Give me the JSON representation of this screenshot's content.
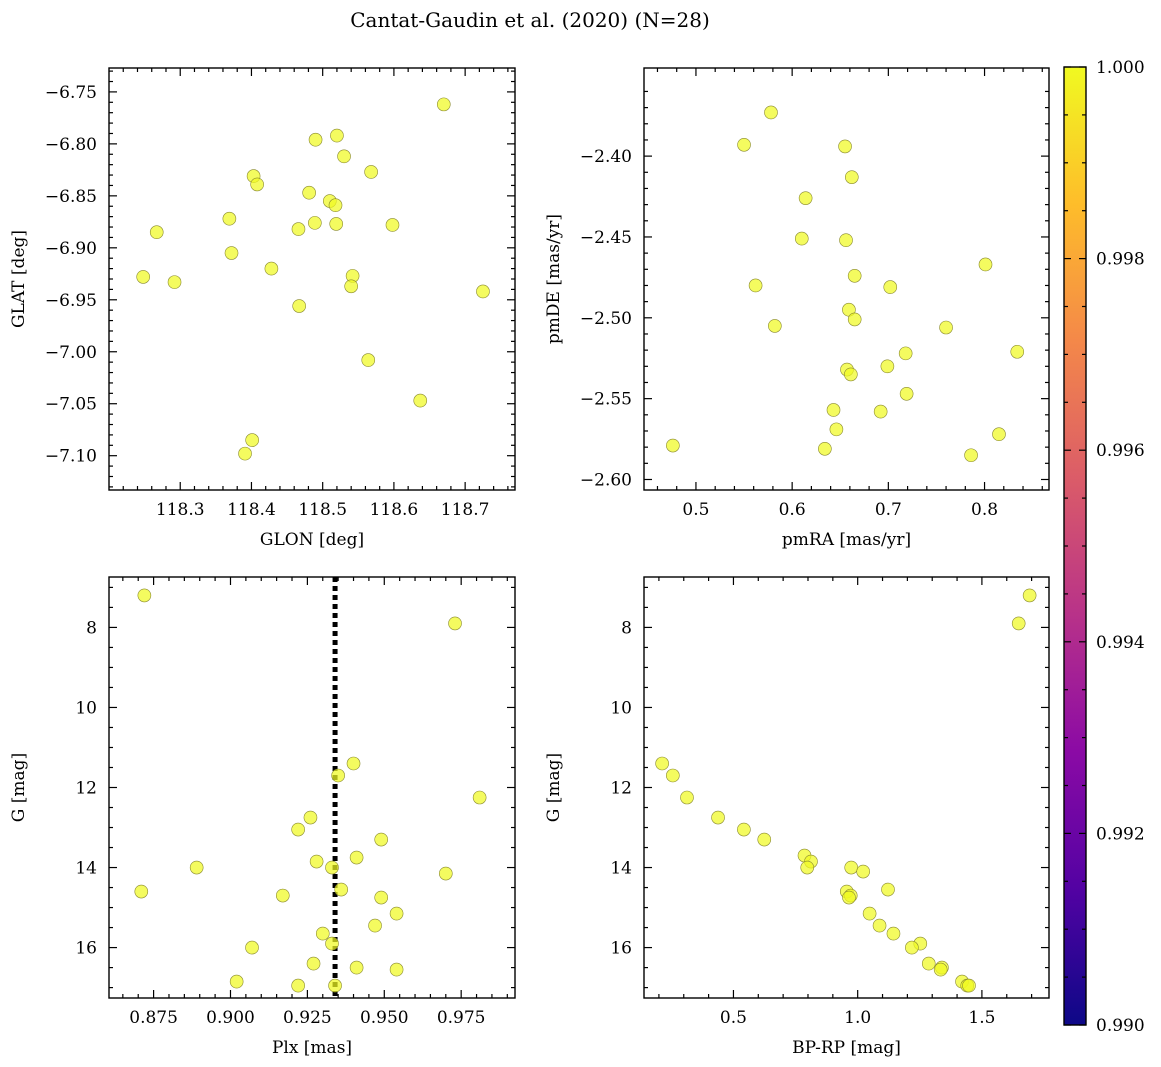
{
  "figure_title": "Cantat-Gaudin et al. (2020) (N=28)",
  "point_color": "#f0f921",
  "colorbar": {
    "colormap": "plasma",
    "colors": [
      "#0d0887",
      "#5302a3",
      "#8b0aa5",
      "#b83289",
      "#db5c68",
      "#f48849",
      "#febd2a",
      "#f0f921"
    ],
    "vmin": 0.99,
    "vmax": 1.0,
    "tick_labels": [
      "0.990",
      "0.992",
      "0.994",
      "0.996",
      "0.998",
      "1.000"
    ],
    "tick_values": [
      0.99,
      0.992,
      0.994,
      0.996,
      0.998,
      1.0
    ]
  },
  "chart_data": [
    {
      "type": "scatter",
      "xlabel": "GLON [deg]",
      "ylabel": "GLAT [deg]",
      "xlim": [
        118.2,
        118.77
      ],
      "ylim": [
        -7.133,
        -6.727
      ],
      "xticks": [
        118.3,
        118.4,
        118.5,
        118.6,
        118.7
      ],
      "xtick_labels": [
        "118.3",
        "118.4",
        "118.5",
        "118.6",
        "118.7"
      ],
      "yticks": [
        -6.75,
        -6.8,
        -6.85,
        -6.9,
        -6.95,
        -7.0,
        -7.05,
        -7.1
      ],
      "ytick_labels": [
        "−6.75",
        "−6.80",
        "−6.85",
        "−6.90",
        "−6.95",
        "−7.00",
        "−7.05",
        "−7.10"
      ],
      "x": [
        118.67,
        118.52,
        118.49,
        118.53,
        118.568,
        118.403,
        118.408,
        118.481,
        118.51,
        118.518,
        118.369,
        118.489,
        118.519,
        118.466,
        118.267,
        118.598,
        118.372,
        118.428,
        118.542,
        118.248,
        118.292,
        118.54,
        118.467,
        118.725,
        118.564,
        118.637,
        118.401,
        118.391
      ],
      "y": [
        -6.762,
        -6.792,
        -6.796,
        -6.812,
        -6.827,
        -6.831,
        -6.839,
        -6.847,
        -6.855,
        -6.859,
        -6.872,
        -6.876,
        -6.877,
        -6.882,
        -6.885,
        -6.878,
        -6.905,
        -6.92,
        -6.927,
        -6.928,
        -6.933,
        -6.937,
        -6.956,
        -6.942,
        -7.008,
        -7.047,
        -7.085,
        -7.098
      ],
      "c": [
        1,
        1,
        1,
        1,
        1,
        1,
        1,
        1,
        1,
        1,
        1,
        1,
        1,
        1,
        1,
        1,
        1,
        1,
        1,
        1,
        1,
        1,
        1,
        1,
        1,
        1,
        1,
        1
      ]
    },
    {
      "type": "scatter",
      "xlabel": "pmRA [mas/yr]",
      "ylabel": "pmDE [mas/yr]",
      "xlim": [
        0.446,
        0.867
      ],
      "ylim": [
        -2.6065,
        -2.3455
      ],
      "xticks": [
        0.5,
        0.6,
        0.7,
        0.8
      ],
      "xtick_labels": [
        "0.5",
        "0.6",
        "0.7",
        "0.8"
      ],
      "yticks": [
        -2.4,
        -2.45,
        -2.5,
        -2.55,
        -2.6
      ],
      "ytick_labels": [
        "−2.40",
        "−2.45",
        "−2.50",
        "−2.55",
        "−2.60"
      ],
      "x": [
        0.578,
        0.55,
        0.655,
        0.662,
        0.614,
        0.61,
        0.656,
        0.801,
        0.665,
        0.562,
        0.702,
        0.659,
        0.665,
        0.582,
        0.76,
        0.834,
        0.718,
        0.657,
        0.699,
        0.661,
        0.719,
        0.643,
        0.692,
        0.646,
        0.815,
        0.476,
        0.634,
        0.786
      ],
      "y": [
        -2.373,
        -2.393,
        -2.394,
        -2.413,
        -2.426,
        -2.451,
        -2.452,
        -2.467,
        -2.474,
        -2.48,
        -2.481,
        -2.495,
        -2.501,
        -2.505,
        -2.506,
        -2.521,
        -2.522,
        -2.532,
        -2.53,
        -2.535,
        -2.547,
        -2.557,
        -2.558,
        -2.569,
        -2.572,
        -2.579,
        -2.581,
        -2.585
      ],
      "c": [
        1,
        1,
        1,
        1,
        1,
        1,
        1,
        1,
        1,
        1,
        1,
        1,
        1,
        1,
        1,
        1,
        1,
        1,
        1,
        1,
        1,
        1,
        1,
        1,
        1,
        1,
        1,
        1
      ]
    },
    {
      "type": "scatter",
      "xlabel": "Plx [mas]",
      "ylabel": "G [mag]",
      "xlim": [
        0.8605,
        0.9925
      ],
      "ylim": [
        17.26,
        6.74
      ],
      "y_inverted": true,
      "xticks": [
        0.875,
        0.9,
        0.925,
        0.95,
        0.975
      ],
      "xtick_labels": [
        "0.875",
        "0.900",
        "0.925",
        "0.950",
        "0.975"
      ],
      "yticks": [
        8,
        10,
        12,
        14,
        16
      ],
      "ytick_labels": [
        "8",
        "10",
        "12",
        "14",
        "16"
      ],
      "vline": {
        "x": 0.934,
        "style": "dotted",
        "color": "#000000"
      },
      "x": [
        0.872,
        0.973,
        0.94,
        0.935,
        0.981,
        0.926,
        0.922,
        0.949,
        0.928,
        0.941,
        0.889,
        0.933,
        0.97,
        0.936,
        0.871,
        0.917,
        0.949,
        0.954,
        0.947,
        0.93,
        0.933,
        0.907,
        0.927,
        0.941,
        0.954,
        0.902,
        0.922,
        0.934
      ],
      "y": [
        7.2,
        7.9,
        11.4,
        11.7,
        12.25,
        12.75,
        13.05,
        13.3,
        13.85,
        13.75,
        14.0,
        14.0,
        14.15,
        14.55,
        14.6,
        14.7,
        14.75,
        15.15,
        15.45,
        15.65,
        15.9,
        16.0,
        16.4,
        16.5,
        16.55,
        16.85,
        16.95,
        16.95
      ],
      "c": [
        1,
        1,
        1,
        1,
        1,
        1,
        1,
        1,
        1,
        1,
        1,
        1,
        1,
        1,
        1,
        1,
        1,
        1,
        1,
        1,
        1,
        1,
        1,
        1,
        1,
        1,
        1,
        1
      ]
    },
    {
      "type": "scatter",
      "xlabel": "BP-RP [mag]",
      "ylabel": "G [mag]",
      "xlim": [
        0.14,
        1.77
      ],
      "ylim": [
        17.26,
        6.74
      ],
      "y_inverted": true,
      "xticks": [
        0.5,
        1.0,
        1.5
      ],
      "xtick_labels": [
        "0.5",
        "1.0",
        "1.5"
      ],
      "yticks": [
        8,
        10,
        12,
        14,
        16
      ],
      "ytick_labels": [
        "8",
        "10",
        "12",
        "14",
        "16"
      ],
      "x": [
        1.692,
        1.648,
        0.213,
        0.256,
        0.313,
        0.438,
        0.542,
        0.624,
        0.786,
        0.812,
        0.797,
        0.974,
        1.022,
        1.122,
        0.956,
        0.972,
        0.965,
        1.048,
        1.088,
        1.144,
        1.252,
        1.218,
        1.286,
        1.339,
        1.334,
        1.42,
        1.441,
        1.448
      ],
      "y": [
        7.2,
        7.9,
        11.4,
        11.7,
        12.25,
        12.75,
        13.05,
        13.3,
        13.7,
        13.85,
        14.0,
        14.0,
        14.1,
        14.55,
        14.6,
        14.7,
        14.75,
        15.15,
        15.45,
        15.65,
        15.9,
        16.0,
        16.4,
        16.5,
        16.55,
        16.85,
        16.95,
        16.95
      ],
      "c": [
        1,
        1,
        1,
        1,
        1,
        1,
        1,
        1,
        1,
        1,
        1,
        1,
        1,
        1,
        1,
        1,
        1,
        1,
        1,
        1,
        1,
        1,
        1,
        1,
        1,
        1,
        1,
        1
      ]
    }
  ]
}
